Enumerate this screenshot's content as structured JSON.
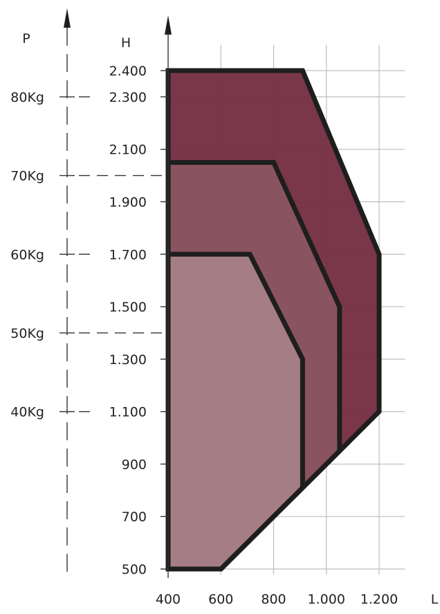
{
  "chart_data": {
    "type": "area",
    "axes": {
      "x_title": "L",
      "y_title": "H",
      "p_title": "P",
      "x_ticks": [
        {
          "value": 400,
          "label": "400"
        },
        {
          "value": 600,
          "label": "600"
        },
        {
          "value": 800,
          "label": "800"
        },
        {
          "value": 1000,
          "label": "1.000"
        },
        {
          "value": 1200,
          "label": "1.200"
        }
      ],
      "y_ticks": [
        {
          "value": 500,
          "label": "500"
        },
        {
          "value": 700,
          "label": "700"
        },
        {
          "value": 900,
          "label": "900"
        },
        {
          "value": 1100,
          "label": "1.100"
        },
        {
          "value": 1300,
          "label": "1.300"
        },
        {
          "value": 1500,
          "label": "1.500"
        },
        {
          "value": 1700,
          "label": "1.700"
        },
        {
          "value": 1900,
          "label": "1.900"
        },
        {
          "value": 2100,
          "label": "2.100"
        },
        {
          "value": 2300,
          "label": "2.300"
        },
        {
          "value": 2400,
          "label": "2.400"
        }
      ],
      "p_ticks": [
        {
          "h": 1100,
          "label": "40Kg"
        },
        {
          "h": 1400,
          "label": "50Kg"
        },
        {
          "h": 1700,
          "label": "60Kg"
        },
        {
          "h": 2000,
          "label": "70Kg"
        },
        {
          "h": 2300,
          "label": "80Kg"
        }
      ],
      "xlim": [
        400,
        1200
      ],
      "ylim": [
        500,
        2400
      ],
      "grid": true
    },
    "regions": [
      {
        "color": "#722a3f",
        "points": [
          [
            400,
            500
          ],
          [
            600,
            500
          ],
          [
            1200,
            1100
          ],
          [
            1200,
            1700
          ],
          [
            910,
            2400
          ],
          [
            400,
            2400
          ]
        ]
      },
      {
        "color": "#8b5562",
        "points": [
          [
            400,
            500
          ],
          [
            600,
            500
          ],
          [
            1050,
            950
          ],
          [
            1050,
            1500
          ],
          [
            800,
            2050
          ],
          [
            400,
            2050
          ]
        ]
      },
      {
        "color": "#a77f86",
        "points": [
          [
            400,
            500
          ],
          [
            600,
            500
          ],
          [
            910,
            810
          ],
          [
            910,
            1300
          ],
          [
            710,
            1700
          ],
          [
            400,
            1700
          ]
        ]
      }
    ],
    "colors": {
      "grid": "#bdbdbd",
      "outline": "#1e1e1e",
      "axis": "#333333"
    }
  }
}
